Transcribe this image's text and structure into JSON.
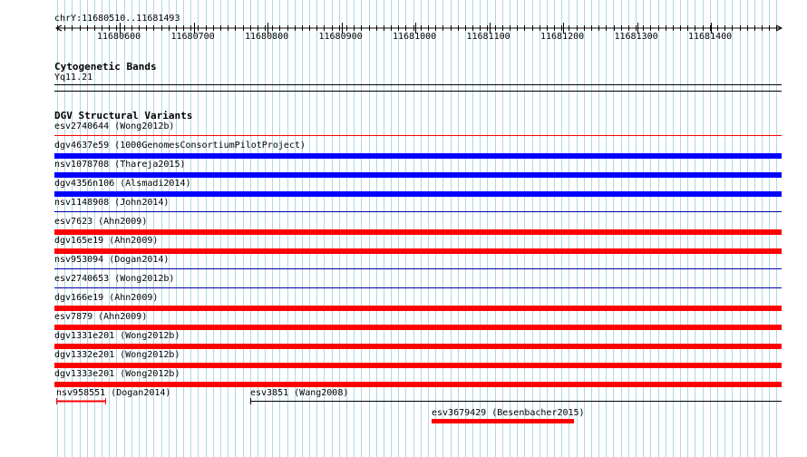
{
  "ruler": {
    "region": "chrY:11680510..11681493",
    "ticks": [
      "11680600",
      "11680700",
      "11680800",
      "11680900",
      "11681000",
      "11681100",
      "11681200",
      "11681300",
      "11681400"
    ]
  },
  "cytoband": {
    "title": "Cytogenetic Bands",
    "band": "Yq11.21"
  },
  "dgv": {
    "title": "DGV Structural Variants",
    "variants": [
      {
        "label": "esv2740644 (Wong2012b)",
        "color": "#ff0000",
        "bar": "thin"
      },
      {
        "label": "dgv4637e59 (1000GenomesConsortiumPilotProject)",
        "color": "#0000ff",
        "bar": "thick"
      },
      {
        "label": "nsv1078708 (Thareja2015)",
        "color": "#0000ff",
        "bar": "thick"
      },
      {
        "label": "dgv4356n106 (Alsmadi2014)",
        "color": "#0000ff",
        "bar": "thick"
      },
      {
        "label": "nsv1148908 (John2014)",
        "color": "#0000aa",
        "bar": "thin"
      },
      {
        "label": "esv7623 (Ahn2009)",
        "color": "#ff0000",
        "bar": "thick"
      },
      {
        "label": "dgv165e19 (Ahn2009)",
        "color": "#ff0000",
        "bar": "thick"
      },
      {
        "label": "nsv953094 (Dogan2014)",
        "color": "#0000aa",
        "bar": "thin"
      },
      {
        "label": "esv2740653 (Wong2012b)",
        "color": "#0000aa",
        "bar": "thin"
      },
      {
        "label": "dgv166e19 (Ahn2009)",
        "color": "#ff0000",
        "bar": "thick"
      },
      {
        "label": "esv7879 (Ahn2009)",
        "color": "#ff0000",
        "bar": "thick"
      },
      {
        "label": "dgv1331e201 (Wong2012b)",
        "color": "#ff0000",
        "bar": "thick"
      },
      {
        "label": "dgv1332e201 (Wong2012b)",
        "color": "#ff0000",
        "bar": "thick"
      },
      {
        "label": "dgv1333e201 (Wong2012b)",
        "color": "#ff0000",
        "bar": "thick"
      }
    ],
    "short": {
      "nsv958551": {
        "label": "nsv958551 (Dogan2014)",
        "color": "#ff0000"
      },
      "esv3851": {
        "label": "esv3851 (Wang2008)",
        "color": "#000000"
      },
      "esv3679429": {
        "label": "esv3679429 (Besenbacher2015)",
        "color": "#ff0000"
      }
    }
  },
  "colors": {
    "gridline": "#add8e6",
    "gain": "#0000ff",
    "loss": "#ff0000"
  }
}
